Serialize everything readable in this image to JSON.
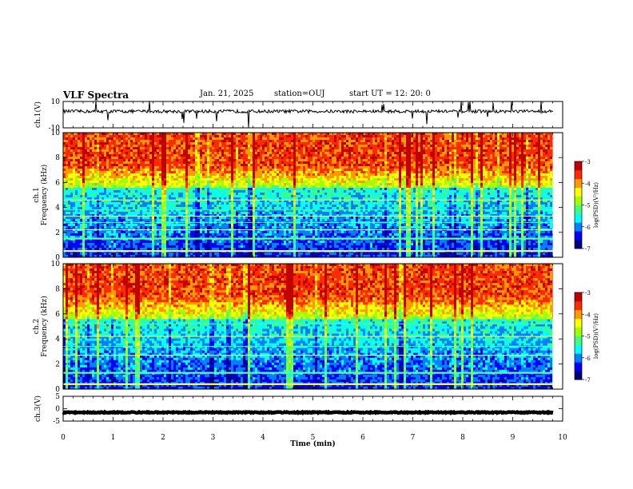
{
  "header": {
    "title": "VLF Spectra",
    "date": "Jan. 21, 2025",
    "station": "station=OUJ",
    "start": "start  UT =  12: 20: 0"
  },
  "chart_data": [
    {
      "type": "line",
      "panel": "waveform ch.1",
      "ylabel": "ch.1(V)",
      "ylim": [
        -10,
        10
      ],
      "yticks": [
        "10",
        "-10"
      ],
      "color": "#000000",
      "baseline": 2.5,
      "amplitude": 1.2,
      "spikes": "frequent short impulses"
    },
    {
      "type": "heatmap",
      "panel": "spectrogram ch.1",
      "ylabel": "ch.1 Frequency (kHz)",
      "ylim": [
        0,
        10
      ],
      "yticks": [
        "0",
        "2",
        "4",
        "6",
        "8",
        "10"
      ],
      "colorbar": {
        "label": "log(PSD)(V²/Hz)",
        "range": [
          -7,
          -3
        ],
        "ticks": [
          "-3",
          "-4",
          "-5",
          "-6",
          "-7"
        ]
      },
      "tones_khz": [
        0.5,
        1.5,
        2.2,
        2.8,
        3.3,
        3.8,
        4.6
      ],
      "noise_floor_khz": 5.5
    },
    {
      "type": "heatmap",
      "panel": "spectrogram ch.2",
      "ylabel": "ch.2 Frequency (kHz)",
      "ylim": [
        0,
        10
      ],
      "yticks": [
        "0",
        "2",
        "4",
        "6",
        "8",
        "10"
      ],
      "colorbar": {
        "label": "log(PSD)(V²/Hz)",
        "range": [
          -7,
          -3
        ],
        "ticks": [
          "-3",
          "-4",
          "-5",
          "-6",
          "-7"
        ]
      },
      "tones_khz": [
        0.4,
        1.3,
        2.7,
        3.4,
        4.2,
        5.2
      ],
      "noise_floor_khz": 5.5
    },
    {
      "type": "line",
      "panel": "waveform ch.3",
      "ylabel": "ch.3(V)",
      "ylim": [
        -5,
        5
      ],
      "yticks": [
        "5",
        "0",
        "-5"
      ],
      "color": "#000000",
      "baseline": -1.5,
      "amplitude": 0.2
    }
  ],
  "xaxis": {
    "label": "Time (min)",
    "xlim": [
      0,
      10
    ],
    "ticks": [
      "0",
      "1",
      "2",
      "3",
      "4",
      "5",
      "6",
      "7",
      "8",
      "9",
      "10"
    ],
    "data_end_min": 9.8
  },
  "colormap": [
    "#000080",
    "#0000ff",
    "#0080ff",
    "#00ffff",
    "#40ff80",
    "#a0ff00",
    "#ffff00",
    "#ff9900",
    "#ff2a00",
    "#c00000"
  ]
}
